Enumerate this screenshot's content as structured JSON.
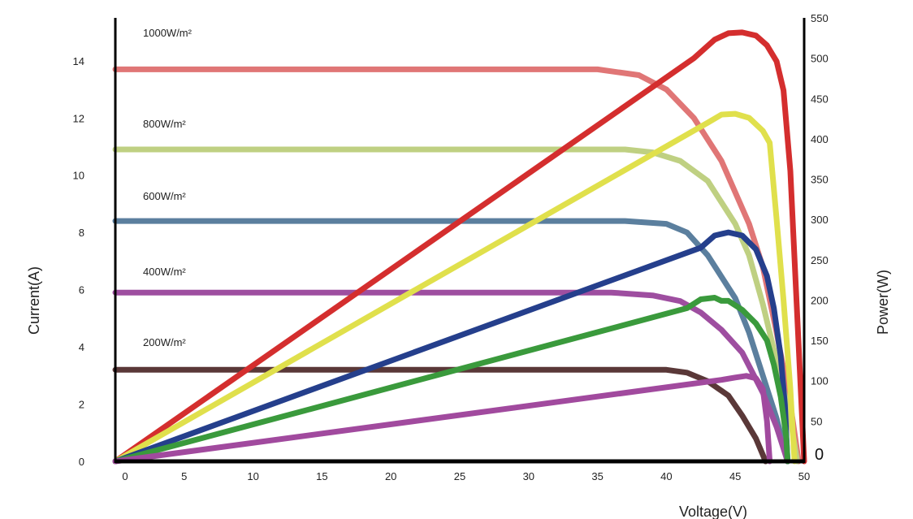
{
  "chart_data": {
    "type": "line",
    "xlabel": "Voltage(V)",
    "ylabel_left": "Current(A)",
    "ylabel_right": "Power(W)",
    "xlim": [
      0,
      50
    ],
    "ylim_left": [
      0,
      15.5
    ],
    "ylim_right": [
      0,
      550
    ],
    "x_ticks": [
      "0",
      "5",
      "10",
      "15",
      "20",
      "25",
      "30",
      "35",
      "40",
      "45",
      "50"
    ],
    "y_left_ticks": [
      "0",
      "2",
      "4",
      "6",
      "8",
      "10",
      "12",
      "14"
    ],
    "y_right_ticks": [
      "0",
      "50",
      "100",
      "150",
      "200",
      "250",
      "300",
      "350",
      "400",
      "450",
      "500",
      "550"
    ],
    "annotations": [
      "1000W/m²",
      "800W/m²",
      "600W/m²",
      "400W/m²",
      "200W/m²"
    ],
    "current_series": [
      {
        "irradiance": "1000W/m²",
        "color": "#e07676",
        "points": [
          [
            0,
            13.7
          ],
          [
            35,
            13.7
          ],
          [
            38,
            13.5
          ],
          [
            40,
            13.0
          ],
          [
            42,
            12.0
          ],
          [
            44,
            10.5
          ],
          [
            46,
            8.3
          ],
          [
            47,
            6.8
          ],
          [
            48,
            4.5
          ],
          [
            49,
            2.0
          ],
          [
            49.6,
            0
          ]
        ]
      },
      {
        "irradiance": "800W/m²",
        "color": "#bfd082",
        "points": [
          [
            0,
            10.9
          ],
          [
            37,
            10.9
          ],
          [
            39,
            10.8
          ],
          [
            41,
            10.5
          ],
          [
            43,
            9.8
          ],
          [
            45,
            8.3
          ],
          [
            46,
            7.2
          ],
          [
            47,
            5.5
          ],
          [
            48,
            3.5
          ],
          [
            49,
            1.5
          ],
          [
            49.5,
            0
          ]
        ]
      },
      {
        "irradiance": "600W/m²",
        "color": "#5b7f9e",
        "points": [
          [
            0,
            8.4
          ],
          [
            37,
            8.4
          ],
          [
            40,
            8.3
          ],
          [
            41.5,
            8.0
          ],
          [
            43,
            7.2
          ],
          [
            45,
            5.7
          ],
          [
            46,
            4.5
          ],
          [
            47,
            3.0
          ],
          [
            48,
            1.5
          ],
          [
            48.8,
            0
          ]
        ]
      },
      {
        "irradiance": "400W/m²",
        "color": "#9e4ea0",
        "points": [
          [
            0,
            5.9
          ],
          [
            36,
            5.9
          ],
          [
            39,
            5.8
          ],
          [
            41,
            5.6
          ],
          [
            42.5,
            5.2
          ],
          [
            44,
            4.6
          ],
          [
            45.5,
            3.8
          ],
          [
            47,
            2.4
          ],
          [
            48,
            1.2
          ],
          [
            48.8,
            0
          ]
        ]
      },
      {
        "irradiance": "200W/m²",
        "color": "#5a3838",
        "points": [
          [
            0,
            3.2
          ],
          [
            38,
            3.2
          ],
          [
            40,
            3.2
          ],
          [
            41.5,
            3.1
          ],
          [
            43,
            2.8
          ],
          [
            44.5,
            2.3
          ],
          [
            45.5,
            1.6
          ],
          [
            46.5,
            0.8
          ],
          [
            47.2,
            0
          ]
        ]
      }
    ],
    "power_series": [
      {
        "irradiance": "1000W/m²",
        "color": "#d42e2e",
        "points": [
          [
            0,
            0
          ],
          [
            42,
            500
          ],
          [
            43.5,
            523
          ],
          [
            44.5,
            531
          ],
          [
            45.5,
            532
          ],
          [
            46.5,
            528
          ],
          [
            47.3,
            516
          ],
          [
            48,
            496
          ],
          [
            48.5,
            460
          ],
          [
            49,
            360
          ],
          [
            49.5,
            180
          ],
          [
            50,
            0
          ]
        ]
      },
      {
        "irradiance": "800W/m²",
        "color": "#e0e04c",
        "points": [
          [
            0,
            0
          ],
          [
            43,
            420
          ],
          [
            44,
            430
          ],
          [
            45,
            431
          ],
          [
            46,
            426
          ],
          [
            47,
            410
          ],
          [
            47.5,
            395
          ],
          [
            48,
            300
          ],
          [
            48.5,
            200
          ],
          [
            49,
            90
          ],
          [
            49.3,
            0
          ]
        ]
      },
      {
        "irradiance": "600W/m²",
        "color": "#253f8c",
        "points": [
          [
            0,
            0
          ],
          [
            42.5,
            265
          ],
          [
            43.5,
            280
          ],
          [
            44.5,
            284
          ],
          [
            45.5,
            280
          ],
          [
            46.5,
            263
          ],
          [
            47.3,
            230
          ],
          [
            47.8,
            190
          ],
          [
            48.3,
            130
          ],
          [
            48.6,
            70
          ],
          [
            48.8,
            0
          ]
        ]
      },
      {
        "irradiance": "400W/m²",
        "color": "#3a9a3c",
        "points": [
          [
            0,
            0
          ],
          [
            41.5,
            190
          ],
          [
            42.5,
            201
          ],
          [
            43.5,
            203
          ],
          [
            44,
            199
          ],
          [
            44.5,
            199
          ],
          [
            45.5,
            188
          ],
          [
            46.5,
            171
          ],
          [
            47.3,
            150
          ],
          [
            47.8,
            120
          ],
          [
            48.3,
            80
          ],
          [
            48.7,
            30
          ],
          [
            48.8,
            0
          ]
        ]
      },
      {
        "irradiance": "200W/m²",
        "color": "#a14a9e",
        "points": [
          [
            0,
            0
          ],
          [
            44,
            101
          ],
          [
            45,
            104
          ],
          [
            45.8,
            106
          ],
          [
            46.5,
            103
          ],
          [
            47,
            90
          ],
          [
            47.3,
            50
          ],
          [
            47.5,
            0
          ]
        ]
      }
    ]
  }
}
